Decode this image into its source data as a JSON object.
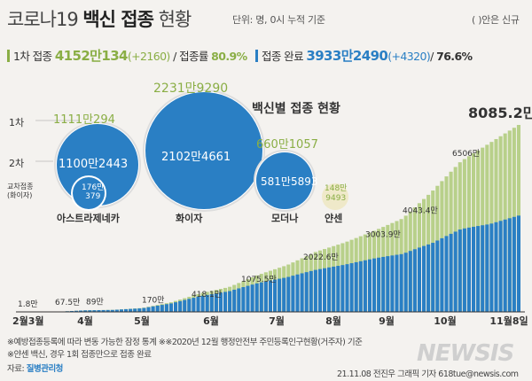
{
  "title": {
    "prefix": "코로나19 ",
    "bold": "백신 접종",
    "suffix": " 현황"
  },
  "unit_note": "단위: 명, 0시 누적 기준",
  "new_note": "( )안은 신규",
  "first_dose": {
    "label": "1차 접종",
    "value": "4152만134",
    "new": "(+2160)",
    "rate_label": "/ 접종률",
    "rate": "80.9%"
  },
  "full_dose": {
    "label": "접종 완료",
    "value": "3933만2490",
    "new": "(+4320)",
    "rate_sep": "/",
    "rate": "76.6%"
  },
  "colors": {
    "first": "#b8d08a",
    "first_text": "#8aae45",
    "full": "#2a7fc4",
    "bubble": "#2a7fc4",
    "ring": "#ffffff"
  },
  "vaccine_panel": {
    "title": "백신별 접종 현황",
    "row_labels": [
      "1차",
      "2차",
      "교차접종\n(화이자)"
    ],
    "vaccines": [
      {
        "name": "아스트라제네카",
        "dose1": "1111만294",
        "dose2": "1100만2443",
        "cross": "176만\n379"
      },
      {
        "name": "화이자",
        "dose1": "2231만9290",
        "dose2": "2102만4661"
      },
      {
        "name": "모더나",
        "dose1": "660만1057",
        "dose2": "581만5893"
      },
      {
        "name": "얀센",
        "dose1": "148만\n9493",
        "dose2": ""
      }
    ]
  },
  "chart_data": {
    "type": "area",
    "title": "",
    "xlabel": "",
    "ylabel": "",
    "x_ticks": [
      "2월3월",
      "4월",
      "5월",
      "6월",
      "7월",
      "8월",
      "9월",
      "10월",
      "11월8일"
    ],
    "series": [
      {
        "name": "1차 접종",
        "color": "#b8d08a"
      },
      {
        "name": "접종 완료",
        "color": "#2a7fc4"
      }
    ],
    "annotations": [
      {
        "label": "1.8만",
        "x": 0,
        "value": 1.8
      },
      {
        "label": "67.5만",
        "x": 0.6,
        "value": 67.5
      },
      {
        "label": "89만",
        "x": 1.1,
        "value": 89
      },
      {
        "label": "170만",
        "x": 2.0,
        "value": 170
      },
      {
        "label": "418.1만",
        "x": 2.8,
        "value": 418.1
      },
      {
        "label": "1075.5만",
        "x": 3.6,
        "value": 1075.5
      },
      {
        "label": "2022.6만",
        "x": 4.6,
        "value": 2022.6
      },
      {
        "label": "3003.9만",
        "x": 5.6,
        "value": 3003.9
      },
      {
        "label": "4043.4만",
        "x": 6.2,
        "value": 4043.4
      },
      {
        "label": "6506만",
        "x": 7.0,
        "value": 6506
      },
      {
        "label": "8085.2만",
        "x": 8.0,
        "value": 8085.2
      }
    ],
    "total_doses": [
      0,
      2,
      67.5,
      89,
      170,
      418.1,
      800,
      1075.5,
      1600,
      2022.6,
      2600,
      3003.9,
      3500,
      4043.4,
      5200,
      6506,
      7300,
      8085.2
    ],
    "first_share": [
      1,
      1,
      0.98,
      0.95,
      0.92,
      0.88,
      0.85,
      0.83,
      0.78,
      0.74,
      0.7,
      0.68,
      0.66,
      0.62,
      0.57,
      0.55,
      0.52,
      0.515
    ],
    "ylim": [
      0,
      8200
    ]
  },
  "footnotes": [
    "※예방접종등록에 따라 변동 가능한 잠정 통계 ※※2020년 12월 행정안전부 주민등록인구현황(거주자) 기준",
    "※얀센 백신, 경우 1회 접종만으로 접종 완료"
  ],
  "source": {
    "label": "자료:",
    "value": "질병관리청"
  },
  "credit": "21.11.08 전진우 그래픽 기자 618tue@newsis.com",
  "logo": "NEWSIS"
}
